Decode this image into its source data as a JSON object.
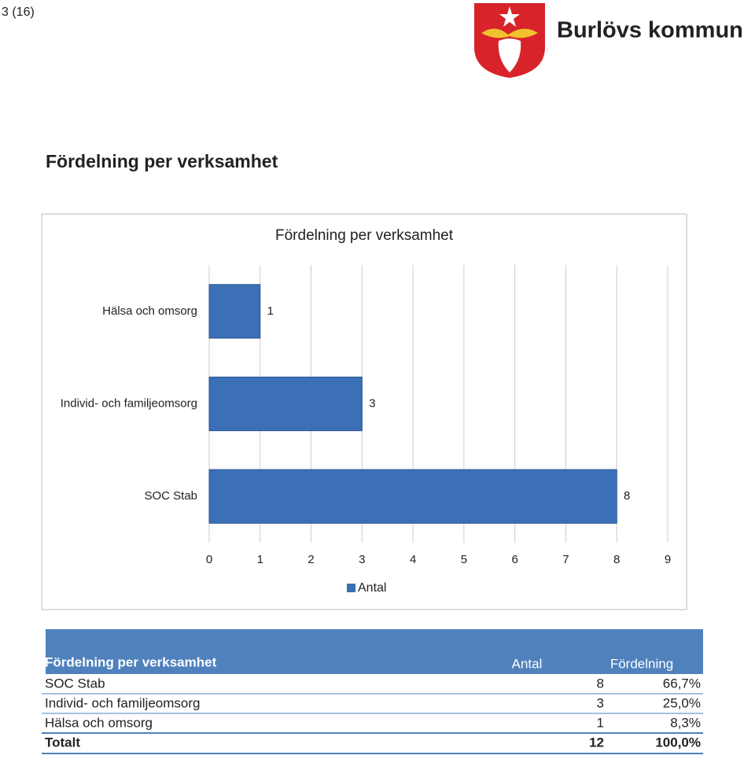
{
  "page_number": "3 (16)",
  "logo_text": "Burlövs kommun",
  "heading": "Fördelning per verksamhet",
  "chart_data": {
    "type": "bar",
    "orientation": "horizontal",
    "title": "Fördelning per verksamhet",
    "categories": [
      "Hälsa och omsorg",
      "Individ- och familjeomsorg",
      "SOC Stab"
    ],
    "series": [
      {
        "name": "Antal",
        "color": "#3b6fb6",
        "values": [
          1,
          3,
          8
        ]
      }
    ],
    "xlim": [
      0,
      9
    ],
    "xticks": [
      0,
      1,
      2,
      3,
      4,
      5,
      6,
      7,
      8,
      9
    ],
    "grid": true,
    "legend": "bottom"
  },
  "table": {
    "header": [
      "Fördelning per verksamhet",
      "Antal",
      "Fördelning"
    ],
    "rows": [
      [
        "SOC Stab",
        8,
        "66,7%"
      ],
      [
        "Individ- och familjeomsorg",
        3,
        "25,0%"
      ],
      [
        "Hälsa och omsorg",
        1,
        "8,3%"
      ]
    ],
    "total": [
      "Totalt",
      12,
      "100,0%"
    ]
  }
}
